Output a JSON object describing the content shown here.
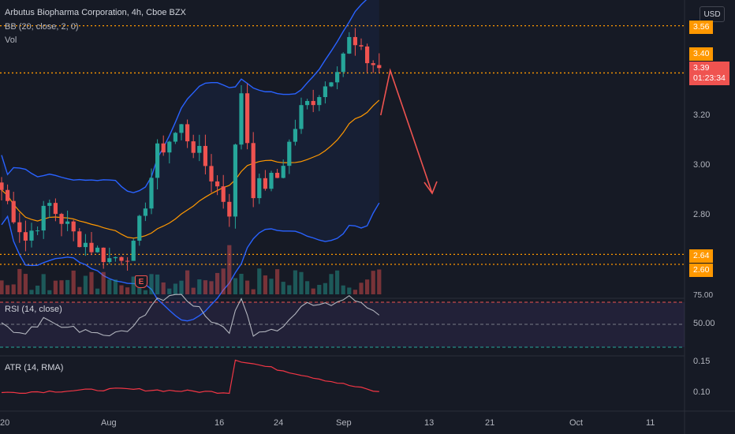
{
  "header": {
    "title": "Arbutus Biopharma Corporation, 4h, Cboe BZX",
    "bb_legend": "BB (20, close, 2, 0)",
    "vol_legend": "Vol",
    "currency": "USD"
  },
  "price_tags": {
    "upper_level": "3.56",
    "bb_upper": "3.40",
    "last_price": "3.39",
    "countdown": "01:23:34",
    "support_upper": "2.64",
    "support_lower": "2.60"
  },
  "price_axis": [
    "3.20",
    "3.00",
    "2.80"
  ],
  "rsi": {
    "legend": "RSI (14, close)",
    "upper_label": "75.00",
    "mid_label": "50.00"
  },
  "atr": {
    "legend": "ATR (14, RMA)",
    "labels": [
      "0.15",
      "0.10"
    ]
  },
  "time_axis": [
    "20",
    "Aug",
    "16",
    "24",
    "Sep",
    "13",
    "21",
    "Oct",
    "11"
  ],
  "earnings_badge": "E",
  "colors": {
    "up": "#26a69a",
    "down": "#ef5350",
    "bb_band": "#2962ff",
    "bb_basis": "#ff9800",
    "rsi_line": "#b2b5be",
    "atr_line": "#f23645",
    "background": "#161a25"
  }
}
